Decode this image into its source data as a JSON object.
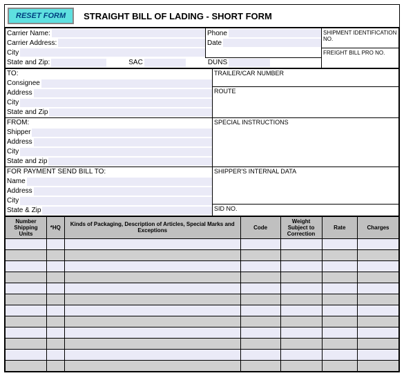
{
  "header": {
    "reset_button": "RESET FORM",
    "title": "STRAIGHT BILL OF LADING - SHORT FORM"
  },
  "carrier": {
    "name_label": "Carrier Name:",
    "address_label": "Carrier Address:",
    "city_label": "City",
    "state_zip_label": "State and Zip:",
    "sac_label": "SAC",
    "duns_label": "DUNS",
    "phone_label": "Phone",
    "date_label": "Date"
  },
  "shipment": {
    "id_label": "SHIPMENT IDENTIFICATION NO.",
    "freight_label": "FREIGHT BILL PRO NO."
  },
  "to": {
    "header": "TO:",
    "consignee": "Consignee",
    "address": "Address",
    "city": "City",
    "state_zip": "State and Zip"
  },
  "from": {
    "header": "FROM:",
    "shipper": "Shipper",
    "address": "Address",
    "city": "City",
    "state_zip": "State and zip"
  },
  "payment": {
    "header": "FOR PAYMENT SEND BILL TO:",
    "name": "Name",
    "address": "Address",
    "city": "City",
    "state_zip": "State & Zip"
  },
  "right_blocks": {
    "trailer": "TRAILER/CAR NUMBER",
    "route": "ROUTE",
    "special": "SPECIAL INSTRUCTIONS",
    "internal": "SHIPPER'S INTERNAL DATA",
    "sid": "SID NO."
  },
  "items_table": {
    "columns": [
      "Number Shipping Units",
      "*HQ",
      "Kinds of Packaging, Description of Articles, Special Marks and Exceptions",
      "Code",
      "Weight Subject to Correction",
      "Rate",
      "Charges"
    ],
    "col_widths": [
      "56px",
      "24px",
      "238px",
      "54px",
      "56px",
      "48px",
      "56px"
    ],
    "header_bg": "#c0c0c0",
    "alt_bg": "#d0d0d0",
    "input_bg": "#eaeaf7",
    "row_count": 12
  },
  "colors": {
    "lavender": "#eaeaf7",
    "reset_bg": "#5ee0e0",
    "border": "#000000"
  }
}
